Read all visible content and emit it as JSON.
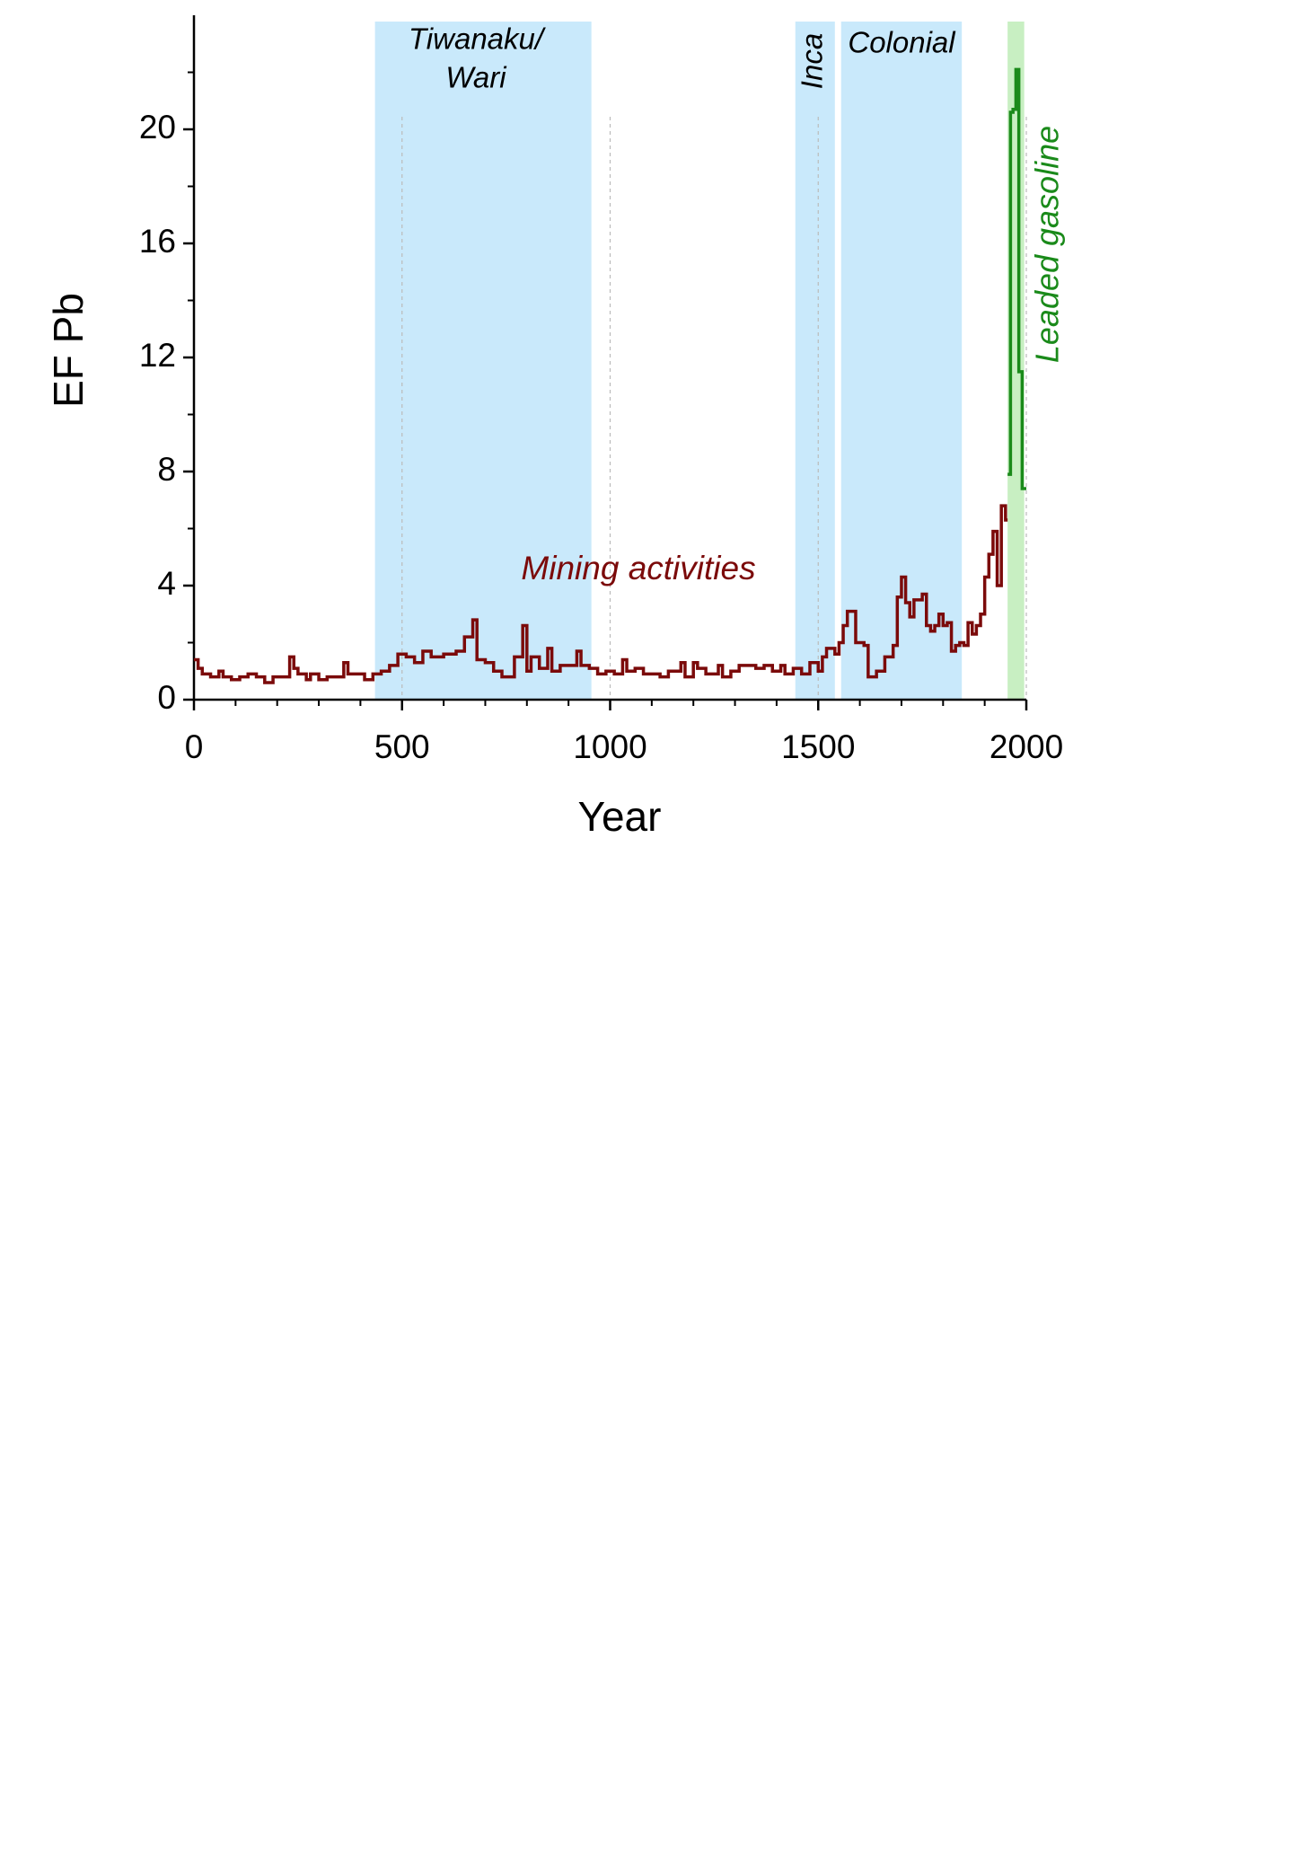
{
  "chart_data": {
    "type": "step-line",
    "x_label": "Year",
    "y_label": "EF Pb",
    "xlim": [
      0,
      2000
    ],
    "ylim": [
      0,
      24
    ],
    "xticks": [
      0,
      500,
      1000,
      1500,
      2000
    ],
    "yticks": [
      0,
      4,
      8,
      12,
      16,
      20
    ],
    "xminorticks": [
      100,
      200,
      300,
      400,
      600,
      700,
      800,
      900,
      1100,
      1200,
      1300,
      1400,
      1600,
      1700,
      1800,
      1900
    ],
    "yminorticks": [
      2,
      6,
      10,
      14,
      18,
      22
    ],
    "periods": [
      {
        "label": [
          "Tiwanaku/",
          "Wari"
        ],
        "start": 435,
        "end": 955,
        "color": "#c9e9fb"
      },
      {
        "label": [
          "Inca"
        ],
        "start": 1445,
        "end": 1540,
        "color": "#c9e9fb"
      },
      {
        "label": [
          "Colonial"
        ],
        "start": 1555,
        "end": 1845,
        "color": "#c9e9fb"
      },
      {
        "label": [
          "Leaded gasoline"
        ],
        "start": 1955,
        "end": 1995,
        "color": "#c8efc2"
      }
    ],
    "annotation": "Mining activities",
    "series": [
      {
        "name": "Mining activities",
        "color": "#7b0a0a",
        "x": [
          0,
          10,
          20,
          40,
          60,
          70,
          90,
          110,
          130,
          150,
          170,
          190,
          210,
          230,
          240,
          250,
          270,
          280,
          300,
          320,
          340,
          360,
          370,
          390,
          410,
          430,
          450,
          470,
          490,
          510,
          530,
          550,
          570,
          600,
          630,
          650,
          670,
          680,
          700,
          720,
          740,
          760,
          770,
          790,
          800,
          810,
          830,
          850,
          860,
          880,
          900,
          920,
          930,
          950,
          970,
          990,
          1010,
          1030,
          1040,
          1060,
          1080,
          1100,
          1120,
          1140,
          1160,
          1170,
          1180,
          1200,
          1210,
          1230,
          1250,
          1260,
          1270,
          1290,
          1310,
          1330,
          1350,
          1370,
          1390,
          1410,
          1420,
          1440,
          1460,
          1480,
          1500,
          1510,
          1520,
          1540,
          1550,
          1560,
          1570,
          1590,
          1610,
          1620,
          1640,
          1660,
          1680,
          1690,
          1700,
          1710,
          1720,
          1730,
          1750,
          1760,
          1770,
          1780,
          1790,
          1800,
          1810,
          1820,
          1830,
          1840,
          1850,
          1860,
          1870,
          1880,
          1890,
          1900,
          1910,
          1920,
          1930,
          1940,
          1950
        ],
        "values": [
          1.4,
          1.1,
          0.9,
          0.8,
          1.0,
          0.8,
          0.7,
          0.8,
          0.9,
          0.8,
          0.6,
          0.8,
          0.8,
          1.5,
          1.1,
          0.9,
          0.7,
          0.9,
          0.7,
          0.8,
          0.8,
          1.3,
          0.9,
          0.9,
          0.7,
          0.9,
          1.0,
          1.2,
          1.6,
          1.5,
          1.3,
          1.7,
          1.5,
          1.6,
          1.7,
          2.2,
          2.8,
          1.4,
          1.3,
          1.0,
          0.8,
          0.8,
          1.5,
          2.6,
          1.0,
          1.5,
          1.1,
          1.8,
          1.0,
          1.2,
          1.2,
          1.7,
          1.2,
          1.1,
          0.9,
          1.0,
          0.9,
          1.4,
          1.0,
          1.1,
          0.9,
          0.9,
          0.8,
          1.0,
          1.0,
          1.3,
          0.8,
          1.3,
          1.1,
          0.9,
          0.9,
          1.2,
          0.8,
          1.0,
          1.2,
          1.2,
          1.1,
          1.2,
          1.0,
          1.2,
          0.9,
          1.1,
          0.9,
          1.3,
          1.0,
          1.5,
          1.8,
          1.6,
          2.0,
          2.6,
          3.1,
          2.0,
          1.9,
          0.8,
          1.0,
          1.5,
          1.9,
          3.6,
          4.3,
          3.4,
          2.9,
          3.5,
          3.7,
          2.6,
          2.4,
          2.6,
          3.0,
          2.6,
          2.7,
          1.7,
          1.9,
          2.0,
          1.9,
          2.7,
          2.3,
          2.6,
          3.0,
          4.3,
          5.1,
          5.9,
          4.0,
          6.8,
          6.3
        ]
      },
      {
        "name": "Leaded gasoline",
        "color": "#1a8a1a",
        "x": [
          1955,
          1962,
          1968,
          1975,
          1982,
          1990
        ],
        "values": [
          7.9,
          20.6,
          20.7,
          22.1,
          11.5,
          7.4
        ]
      }
    ]
  }
}
